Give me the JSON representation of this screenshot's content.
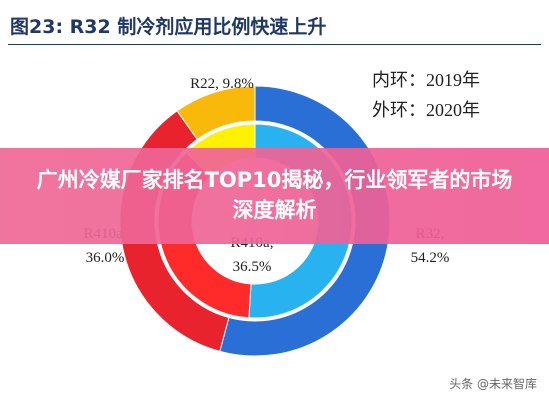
{
  "chart_data": {
    "type": "donut",
    "title": "图23: R32 制冷剂应用比例快速上升",
    "categories": [
      "R32",
      "R410a",
      "R22"
    ],
    "series": [
      {
        "name": "内环：2019年",
        "ring": "inner",
        "colors": [
          "#29b2f0",
          "#ff2a2a",
          "#fff200"
        ],
        "values": [
          51.0,
          36.5,
          12.5
        ],
        "value_labels": [
          null,
          "R410a,\n36.5%",
          null
        ]
      },
      {
        "name": "外环：2020年",
        "ring": "outer",
        "colors": [
          "#2a6fd6",
          "#e8232e",
          "#f9b90b"
        ],
        "values": [
          54.2,
          36.0,
          9.8
        ],
        "value_labels": [
          "R32,\n54.2%",
          "R410a,\n36.0%",
          "R22, 9.8%"
        ]
      }
    ]
  },
  "banner": {
    "text": "广州冷媒厂家排名TOP10揭秘，行业领军者的市场深度解析"
  },
  "watermark": "头条 @未来智库"
}
